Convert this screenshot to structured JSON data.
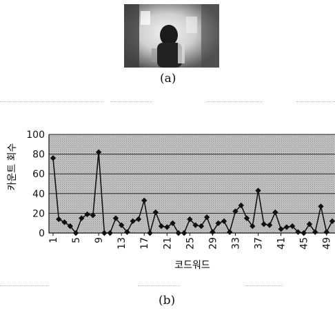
{
  "captions": {
    "a": "(a)",
    "b": "(b)"
  },
  "chart_data": {
    "type": "line",
    "title": "",
    "xlabel": "코드워드",
    "ylabel": "카운트 회수",
    "ylim": [
      0,
      100
    ],
    "yticks": [
      0,
      20,
      40,
      60,
      80,
      100
    ],
    "xticks": [
      1,
      5,
      9,
      13,
      17,
      21,
      25,
      29,
      33,
      37,
      41,
      45,
      49
    ],
    "grid": true,
    "series": [
      {
        "color": "#111111",
        "marker": "diamond",
        "x": [
          1,
          2,
          3,
          4,
          5,
          6,
          7,
          8,
          9,
          10,
          11,
          12,
          13,
          14,
          15,
          16,
          17,
          18,
          19,
          20,
          21,
          22,
          23,
          24,
          25,
          26,
          27,
          28,
          29,
          30,
          31,
          32,
          33,
          34,
          35,
          36,
          37,
          38,
          39,
          40,
          41,
          42,
          43,
          44,
          45,
          46,
          47,
          48,
          49,
          50
        ],
        "values": [
          76,
          14,
          11,
          7,
          0,
          15,
          19,
          18,
          82,
          0,
          0,
          15,
          8,
          1,
          12,
          14,
          33,
          0,
          21,
          7,
          6,
          10,
          0,
          0,
          14,
          8,
          7,
          16,
          1,
          10,
          12,
          1,
          22,
          28,
          15,
          7,
          43,
          9,
          8,
          21,
          4,
          6,
          7,
          1,
          0,
          9,
          1,
          27,
          1,
          12
        ]
      }
    ]
  }
}
